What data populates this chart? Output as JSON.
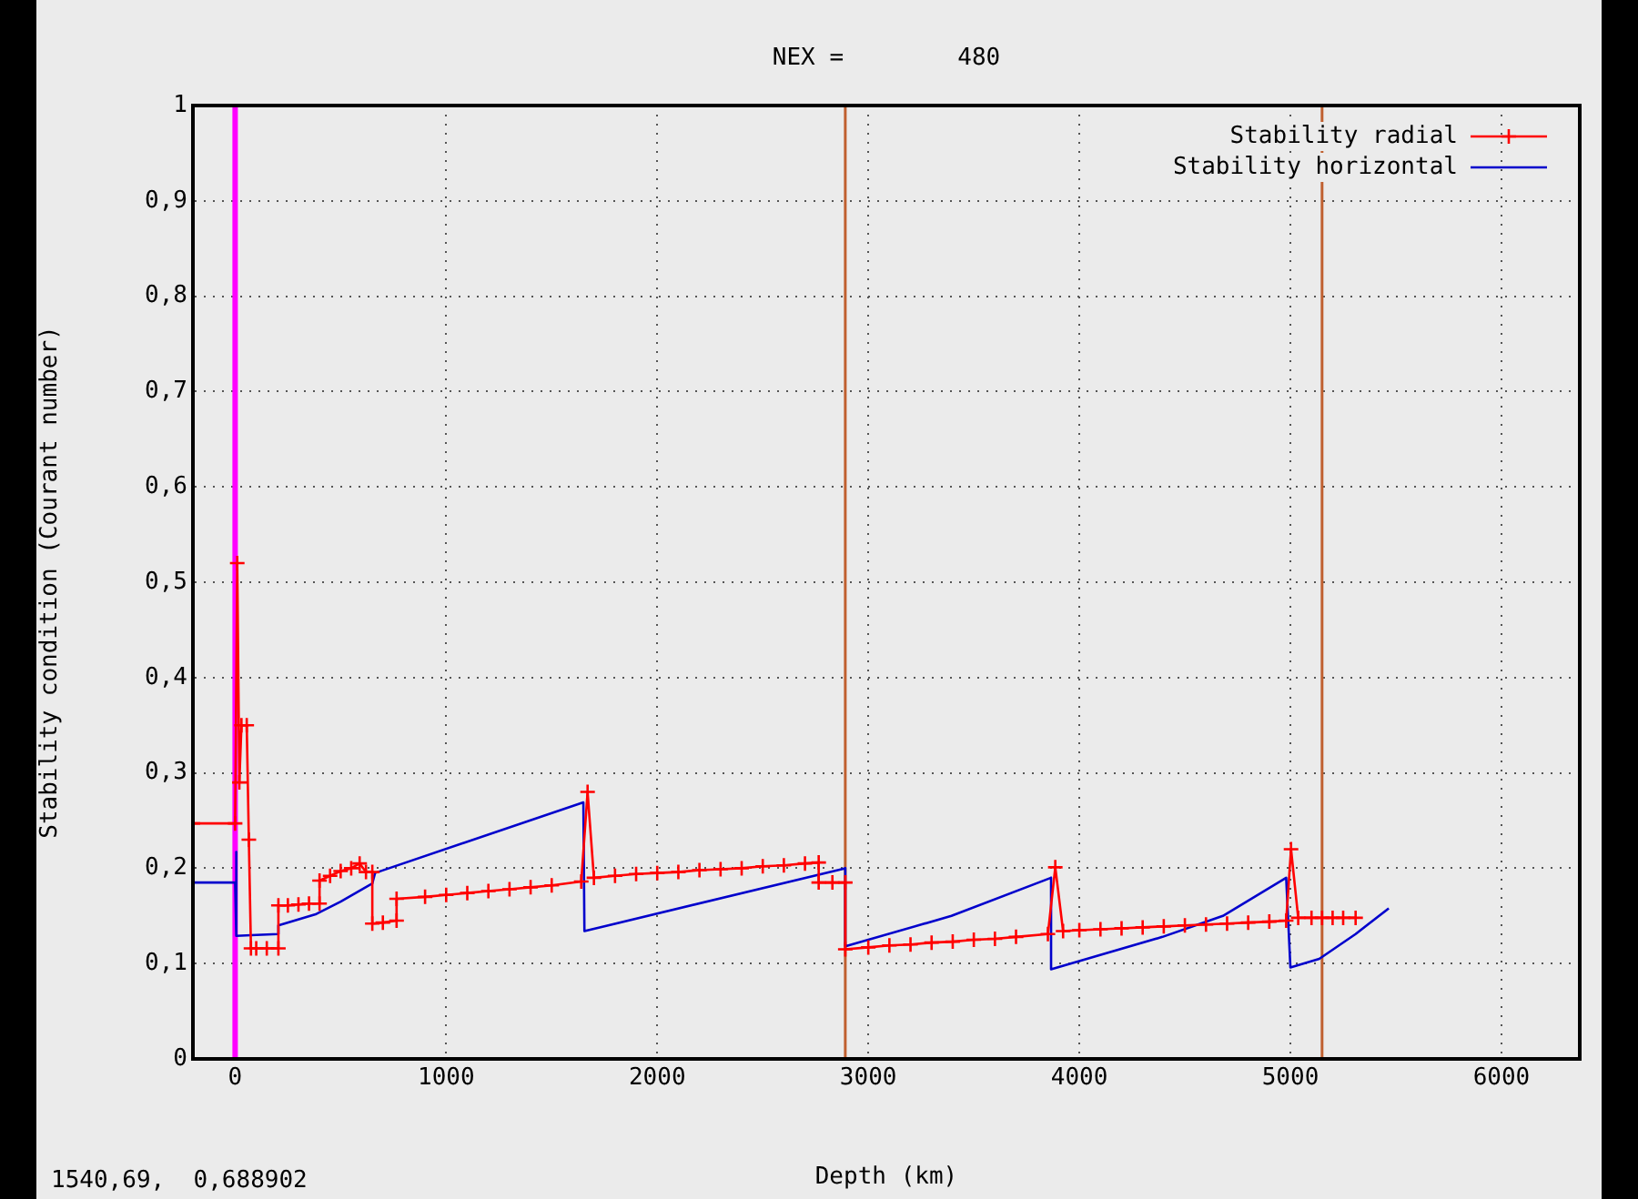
{
  "chart_data": {
    "type": "line",
    "title": "NEX =        480",
    "xlabel": "Depth (km)",
    "ylabel": "Stability condition (Courant number)",
    "annotations": [
      "1540,69,  0,688902"
    ],
    "xlim": [
      -200,
      6371
    ],
    "xticks": [
      0,
      1000,
      2000,
      3000,
      4000,
      5000,
      6000
    ],
    "ylim": [
      0,
      1
    ],
    "yticks": [
      0,
      {
        "value": 0.1,
        "label": "0,1"
      },
      {
        "value": 0.2,
        "label": "0,2"
      },
      {
        "value": 0.3,
        "label": "0,3"
      },
      {
        "value": 0.4,
        "label": "0,4"
      },
      {
        "value": 0.5,
        "label": "0,5"
      },
      {
        "value": 0.6,
        "label": "0,6"
      },
      {
        "value": 0.7,
        "label": "0,7"
      },
      {
        "value": 0.8,
        "label": "0,8"
      },
      {
        "value": 0.9,
        "label": "0,9"
      },
      1
    ],
    "grid": true,
    "legend": "top right",
    "line_style": "solid",
    "ref_lines": [
      {
        "axis": "x",
        "value": 0,
        "label": null,
        "color": "#ff00ff"
      },
      {
        "axis": "x",
        "value": 2891,
        "label": null,
        "color": "#c06030"
      },
      {
        "axis": "x",
        "value": 5150,
        "label": null,
        "color": "#c06030"
      }
    ],
    "series": [
      {
        "name": "Stability radial",
        "color": "#ff0000",
        "marker": "cross",
        "x": [
          -200,
          0,
          10,
          20,
          30,
          55,
          65,
          75,
          100,
          150,
          205,
          205,
          250,
          300,
          350,
          400,
          400,
          450,
          500,
          550,
          590,
          620,
          650,
          650,
          700,
          765,
          765,
          900,
          1000,
          1100,
          1200,
          1300,
          1400,
          1500,
          1640,
          1670,
          1700,
          1800,
          1900,
          2000,
          2100,
          2200,
          2300,
          2400,
          2500,
          2600,
          2700,
          2765,
          2765,
          2830,
          2891,
          2891,
          3000,
          3100,
          3200,
          3300,
          3400,
          3500,
          3600,
          3700,
          3851,
          3886,
          3923,
          4000,
          4100,
          4200,
          4300,
          4400,
          4500,
          4600,
          4700,
          4800,
          4900,
          4980,
          5003,
          5037,
          5100,
          5150,
          5200,
          5250,
          5309
        ],
        "values": [
          0.247,
          0.247,
          0.52,
          0.29,
          0.35,
          0.35,
          0.23,
          0.116,
          0.116,
          0.116,
          0.116,
          0.161,
          0.161,
          0.162,
          0.163,
          0.163,
          0.187,
          0.192,
          0.197,
          0.2,
          0.205,
          0.196,
          0.196,
          0.142,
          0.143,
          0.145,
          0.168,
          0.17,
          0.172,
          0.174,
          0.176,
          0.178,
          0.18,
          0.182,
          0.186,
          0.28,
          0.19,
          0.192,
          0.194,
          0.195,
          0.196,
          0.198,
          0.199,
          0.2,
          0.202,
          0.203,
          0.205,
          0.206,
          0.185,
          0.185,
          0.185,
          0.115,
          0.117,
          0.119,
          0.12,
          0.122,
          0.123,
          0.125,
          0.126,
          0.128,
          0.131,
          0.201,
          0.134,
          0.135,
          0.136,
          0.137,
          0.138,
          0.139,
          0.14,
          0.141,
          0.142,
          0.143,
          0.144,
          0.145,
          0.22,
          0.148,
          0.148,
          0.148,
          0.148,
          0.148,
          0.148
        ]
      },
      {
        "name": "Stability horizontal",
        "color": "#0000cc",
        "marker": "none",
        "x": [
          -200,
          0,
          5,
          6,
          100,
          205,
          205,
          385,
          500,
          650,
          663,
          1650,
          1655,
          2891,
          2891,
          3394,
          3866,
          3866,
          4394,
          4680,
          4980,
          5000,
          5137,
          5309,
          5466
        ],
        "values": [
          0.185,
          0.185,
          0.217,
          0.129,
          0.13,
          0.131,
          0.14,
          0.152,
          0.165,
          0.184,
          0.195,
          0.269,
          0.134,
          0.2,
          0.118,
          0.15,
          0.19,
          0.094,
          0.128,
          0.15,
          0.19,
          0.096,
          0.105,
          0.131,
          0.158
        ]
      }
    ]
  }
}
